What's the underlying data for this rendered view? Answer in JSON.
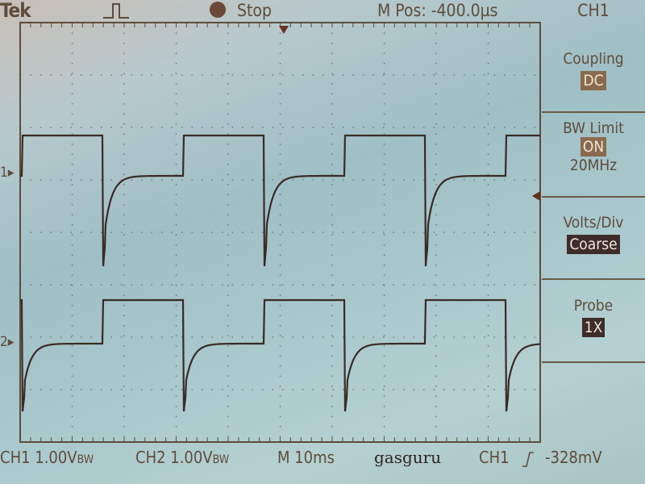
{
  "header": {
    "brand": "Tek",
    "trigger_icon": "pulse-trigger-icon",
    "run_state": "Stop",
    "run_icon": "stop-dot-icon",
    "m_pos": "M Pos: -400.0µs",
    "menu_title": "CH1"
  },
  "menu": {
    "coupling": {
      "label": "Coupling",
      "value": "DC"
    },
    "bw_limit": {
      "label": "BW Limit",
      "value": "ON",
      "sub": "20MHz"
    },
    "volts_div": {
      "label": "Volts/Div",
      "value": "Coarse"
    },
    "probe": {
      "label": "Probe",
      "value": "1X"
    }
  },
  "markers": {
    "ch1": "1",
    "ch2": "2"
  },
  "footer": {
    "ch1_scale": "CH1 1.00V",
    "ch2_scale": "CH2 1.00V",
    "bw_mark": "BW",
    "timebase": "M 10ms",
    "label": "gasguru",
    "trigger_source": "CH1",
    "trigger_slope_icon": "rising-edge-icon",
    "trigger_level": "-328mV"
  },
  "colors": {
    "trace": "#3a2a26",
    "text": "#5e4c3c",
    "highlight": "#8a6a4e",
    "highlight_dark": "#3d2c2a"
  }
}
